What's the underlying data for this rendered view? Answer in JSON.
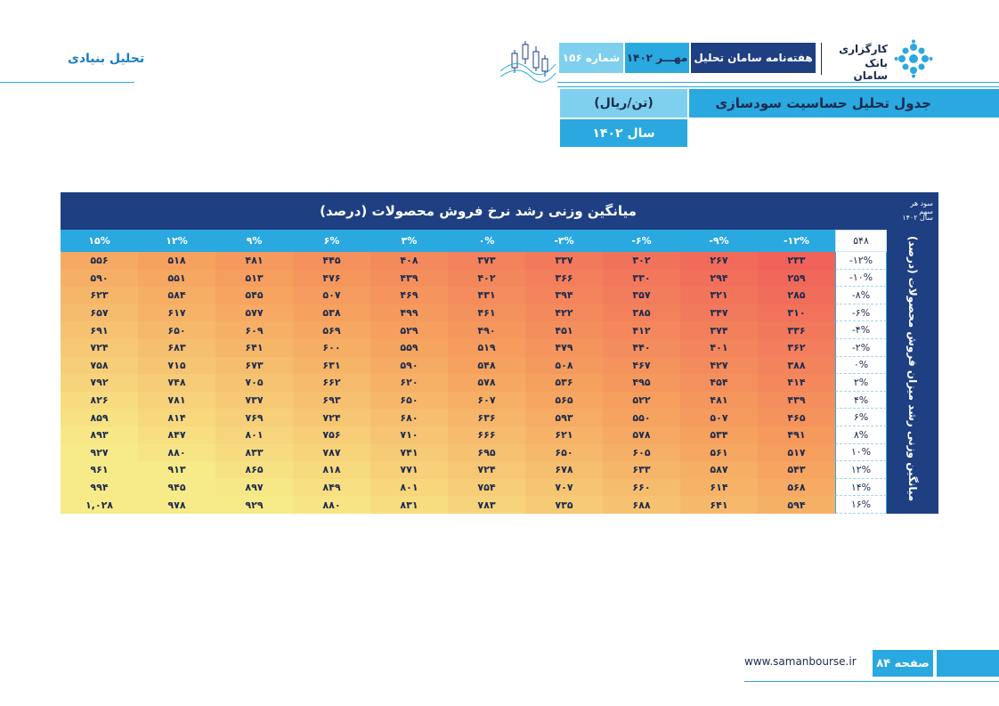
{
  "header": {
    "section_title": "تحلیل بنیادی",
    "brand_line1": "کارگزاری",
    "brand_line2": "بانک سامان",
    "weekly_name": "هفته‌نامه سامان تحلیل",
    "issue_month": "مهـــر ۱۴۰۲",
    "issue_number": "شماره ۱۵۶",
    "accent": "#2aa8e0",
    "navy": "#1e3f82"
  },
  "title": {
    "table_title": "جدول تحلیل حساسیت سودسازی",
    "unit": "(تن/ریال)",
    "year": "سال ۱۴۰۲"
  },
  "table": {
    "column_axis_label": "میانگین وزنی رشد نرخ فروش محصولات (درصد)",
    "row_axis_label": "میانگین وزنی رشد میزان فروش محصولات (درصد)",
    "corner_line1": "سود هر سهم",
    "corner_line2": "سال ۱۴۰۲",
    "base_value": "۵۴۸",
    "col_headers": [
      "-۱۲%",
      "-۹%",
      "-۶%",
      "-۳%",
      "۰%",
      "۳%",
      "۶%",
      "۹%",
      "۱۲%",
      "۱۵%"
    ],
    "row_headers": [
      "-۱۲%",
      "-۱۰%",
      "-۸%",
      "-۶%",
      "-۴%",
      "-۲%",
      "۰%",
      "۲%",
      "۴%",
      "۶%",
      "۸%",
      "۱۰%",
      "۱۲%",
      "۱۴%",
      "۱۶%"
    ],
    "rows": [
      [
        "۲۳۳",
        "۲۶۷",
        "۳۰۲",
        "۳۳۷",
        "۳۷۳",
        "۴۰۸",
        "۴۴۵",
        "۴۸۱",
        "۵۱۸",
        "۵۵۶"
      ],
      [
        "۲۵۹",
        "۲۹۴",
        "۳۳۰",
        "۳۶۶",
        "۴۰۲",
        "۴۳۹",
        "۴۷۶",
        "۵۱۳",
        "۵۵۱",
        "۵۹۰"
      ],
      [
        "۲۸۵",
        "۳۲۱",
        "۳۵۷",
        "۳۹۴",
        "۴۳۱",
        "۴۶۹",
        "۵۰۷",
        "۵۴۵",
        "۵۸۴",
        "۶۲۳"
      ],
      [
        "۳۱۰",
        "۳۴۷",
        "۳۸۵",
        "۴۲۲",
        "۴۶۱",
        "۴۹۹",
        "۵۳۸",
        "۵۷۷",
        "۶۱۷",
        "۶۵۷"
      ],
      [
        "۳۳۶",
        "۳۷۴",
        "۴۱۲",
        "۴۵۱",
        "۴۹۰",
        "۵۲۹",
        "۵۶۹",
        "۶۰۹",
        "۶۵۰",
        "۶۹۱"
      ],
      [
        "۳۶۲",
        "۴۰۱",
        "۴۴۰",
        "۴۷۹",
        "۵۱۹",
        "۵۵۹",
        "۶۰۰",
        "۶۴۱",
        "۶۸۳",
        "۷۲۴"
      ],
      [
        "۳۸۸",
        "۴۲۷",
        "۴۶۷",
        "۵۰۸",
        "۵۴۸",
        "۵۹۰",
        "۶۳۱",
        "۶۷۳",
        "۷۱۵",
        "۷۵۸"
      ],
      [
        "۴۱۴",
        "۴۵۴",
        "۴۹۵",
        "۵۳۶",
        "۵۷۸",
        "۶۲۰",
        "۶۶۲",
        "۷۰۵",
        "۷۴۸",
        "۷۹۲"
      ],
      [
        "۴۳۹",
        "۴۸۱",
        "۵۲۲",
        "۵۶۵",
        "۶۰۷",
        "۶۵۰",
        "۶۹۳",
        "۷۳۷",
        "۷۸۱",
        "۸۲۶"
      ],
      [
        "۴۶۵",
        "۵۰۷",
        "۵۵۰",
        "۵۹۳",
        "۶۳۶",
        "۶۸۰",
        "۷۲۴",
        "۷۶۹",
        "۸۱۴",
        "۸۵۹"
      ],
      [
        "۴۹۱",
        "۵۳۴",
        "۵۷۸",
        "۶۲۱",
        "۶۶۶",
        "۷۱۰",
        "۷۵۶",
        "۸۰۱",
        "۸۴۷",
        "۸۹۳"
      ],
      [
        "۵۱۷",
        "۵۶۱",
        "۶۰۵",
        "۶۵۰",
        "۶۹۵",
        "۷۴۱",
        "۷۸۷",
        "۸۳۳",
        "۸۸۰",
        "۹۲۷"
      ],
      [
        "۵۴۳",
        "۵۸۷",
        "۶۳۳",
        "۶۷۸",
        "۷۲۴",
        "۷۷۱",
        "۸۱۸",
        "۸۶۵",
        "۹۱۳",
        "۹۶۱"
      ],
      [
        "۵۶۸",
        "۶۱۴",
        "۶۶۰",
        "۷۰۷",
        "۷۵۴",
        "۸۰۱",
        "۸۴۹",
        "۸۹۷",
        "۹۴۵",
        "۹۹۴"
      ],
      [
        "۵۹۴",
        "۶۴۱",
        "۶۸۸",
        "۷۳۵",
        "۷۸۳",
        "۸۳۱",
        "۸۸۰",
        "۹۲۹",
        "۹۷۸",
        "۱,۰۲۸"
      ]
    ],
    "heat_low": "#f0625a",
    "heat_mid": "#f6a25e",
    "heat_high": "#f7ea88"
  },
  "footer": {
    "url": "www.samanbourse.ir",
    "page_label": "صفحه ۸۴"
  }
}
